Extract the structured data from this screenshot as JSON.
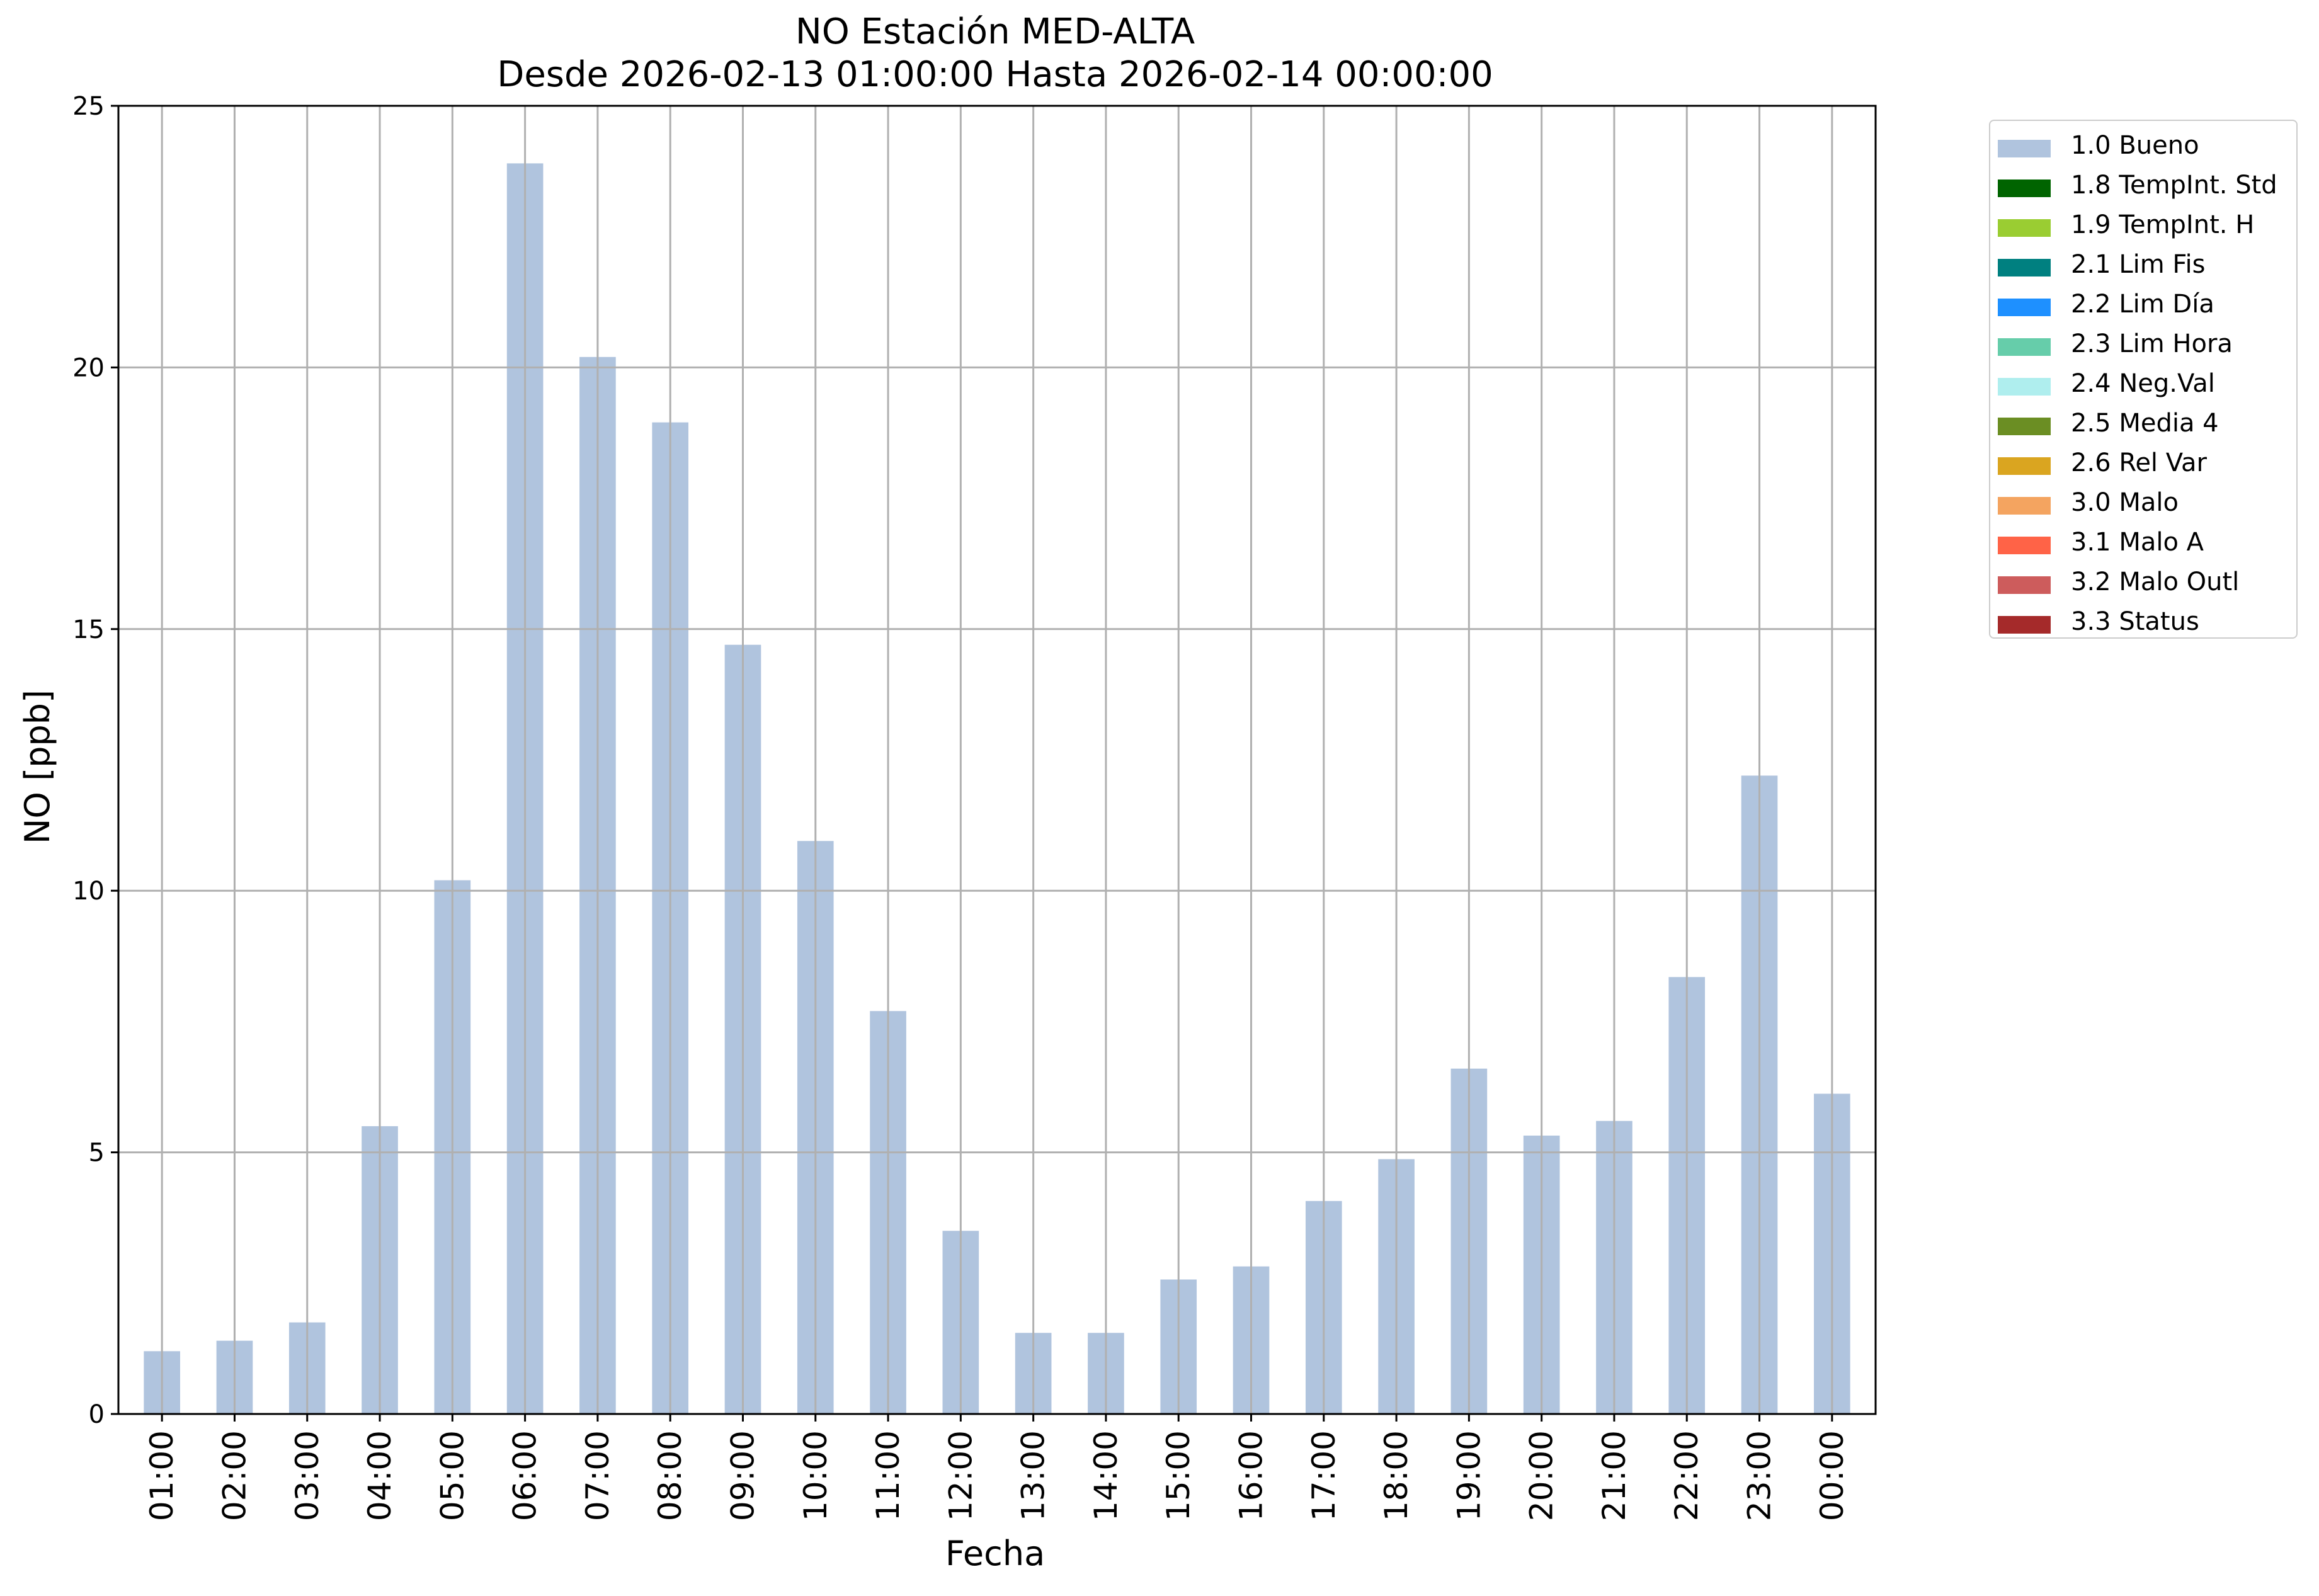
{
  "chart_data": {
    "type": "bar",
    "title": "NO Estación MED-ALTA",
    "subtitle": "Desde 2026-02-13 01:00:00 Hasta 2026-02-14 00:00:00",
    "xlabel": "Fecha",
    "ylabel": "NO [ppb]",
    "ylim": [
      0,
      25
    ],
    "yticks": [
      0,
      5,
      10,
      15,
      20,
      25
    ],
    "grid": true,
    "legend_position": "outside-right",
    "bar_color": "#b0c4de",
    "categories": [
      "01:00",
      "02:00",
      "03:00",
      "04:00",
      "05:00",
      "06:00",
      "07:00",
      "08:00",
      "09:00",
      "10:00",
      "11:00",
      "12:00",
      "13:00",
      "14:00",
      "15:00",
      "16:00",
      "17:00",
      "18:00",
      "19:00",
      "20:00",
      "21:00",
      "22:00",
      "23:00",
      "00:00"
    ],
    "series": [
      {
        "name": "1.0 Bueno",
        "values": [
          1.2,
          1.4,
          1.75,
          5.5,
          10.2,
          23.9,
          20.2,
          18.95,
          14.7,
          10.95,
          7.7,
          3.5,
          1.55,
          1.55,
          2.57,
          2.82,
          4.07,
          4.87,
          6.6,
          5.32,
          5.6,
          8.35,
          12.2,
          6.12
        ]
      }
    ],
    "legend": [
      {
        "label": "1.0 Bueno",
        "color": "#b0c4de"
      },
      {
        "label": "1.8 TempInt. Std",
        "color": "#006400"
      },
      {
        "label": "1.9 TempInt. H",
        "color": "#9acd32"
      },
      {
        "label": "2.1 Lim Fis",
        "color": "#008080"
      },
      {
        "label": "2.2 Lim Día",
        "color": "#1e90ff"
      },
      {
        "label": "2.3 Lim Hora",
        "color": "#66cdaa"
      },
      {
        "label": "2.4 Neg.Val",
        "color": "#afeeee"
      },
      {
        "label": "2.5 Media 4",
        "color": "#6b8e23"
      },
      {
        "label": "2.6 Rel Var",
        "color": "#daa520"
      },
      {
        "label": "3.0 Malo",
        "color": "#f4a460"
      },
      {
        "label": "3.1 Malo A",
        "color": "#ff6347"
      },
      {
        "label": "3.2 Malo Outl",
        "color": "#cd5c5c"
      },
      {
        "label": "3.3 Status",
        "color": "#a52a2a"
      }
    ]
  }
}
